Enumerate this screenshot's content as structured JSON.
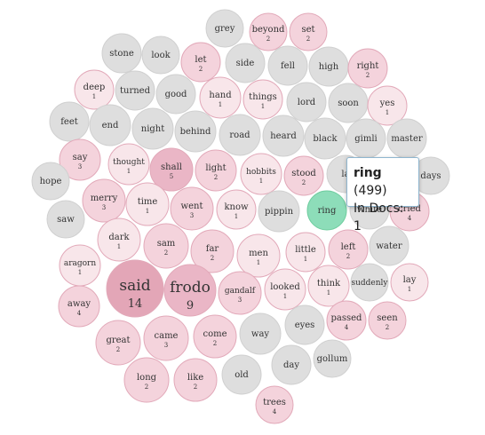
{
  "colors": {
    "zero": "#dedede",
    "zero_stroke": "#d0d0d0",
    "low": "#f8e6ea",
    "mid": "#f4d3dc",
    "high": "#eab6c6",
    "top": "#e3a6b7",
    "stroke": "#e2a9b9",
    "highlight": "#8dddb9",
    "highlight_stroke": "#6fcd9f"
  },
  "tooltip": {
    "word": "ring",
    "total": "(499)",
    "docs_label": "In Docs:",
    "docs": "1"
  },
  "chart_data": {
    "type": "bubble",
    "title": "",
    "items": [
      {
        "word": "grey",
        "count": null
      },
      {
        "word": "beyond",
        "count": 2
      },
      {
        "word": "set",
        "count": 2
      },
      {
        "word": "stone",
        "count": null
      },
      {
        "word": "look",
        "count": null
      },
      {
        "word": "let",
        "count": 2
      },
      {
        "word": "side",
        "count": null
      },
      {
        "word": "fell",
        "count": null
      },
      {
        "word": "high",
        "count": null
      },
      {
        "word": "right",
        "count": 2
      },
      {
        "word": "deep",
        "count": 1
      },
      {
        "word": "turned",
        "count": null
      },
      {
        "word": "good",
        "count": null
      },
      {
        "word": "hand",
        "count": 1
      },
      {
        "word": "things",
        "count": 1
      },
      {
        "word": "lord",
        "count": null
      },
      {
        "word": "soon",
        "count": null
      },
      {
        "word": "yes",
        "count": 1
      },
      {
        "word": "feet",
        "count": null
      },
      {
        "word": "end",
        "count": null
      },
      {
        "word": "night",
        "count": null
      },
      {
        "word": "behind",
        "count": null
      },
      {
        "word": "road",
        "count": null
      },
      {
        "word": "heard",
        "count": null
      },
      {
        "word": "black",
        "count": null
      },
      {
        "word": "gimli",
        "count": null
      },
      {
        "word": "master",
        "count": null
      },
      {
        "word": "say",
        "count": 3
      },
      {
        "word": "thought",
        "count": 1
      },
      {
        "word": "shall",
        "count": 5
      },
      {
        "word": "light",
        "count": 2
      },
      {
        "word": "hobbits",
        "count": 1
      },
      {
        "word": "stood",
        "count": 2
      },
      {
        "word": "la",
        "count": null
      },
      {
        "word": "days",
        "count": null
      },
      {
        "word": "hope",
        "count": null
      },
      {
        "word": "merry",
        "count": 3
      },
      {
        "word": "time",
        "count": 1
      },
      {
        "word": "went",
        "count": 3
      },
      {
        "word": "know",
        "count": 1
      },
      {
        "word": "pippin",
        "count": null
      },
      {
        "word": "ring",
        "count": null
      },
      {
        "word": "white",
        "count": null
      },
      {
        "word": "cried",
        "count": 4
      },
      {
        "word": "saw",
        "count": null
      },
      {
        "word": "dark",
        "count": 1
      },
      {
        "word": "sam",
        "count": 2
      },
      {
        "word": "far",
        "count": 2
      },
      {
        "word": "men",
        "count": 1
      },
      {
        "word": "little",
        "count": 1
      },
      {
        "word": "left",
        "count": 2
      },
      {
        "word": "water",
        "count": null
      },
      {
        "word": "aragorn",
        "count": 1
      },
      {
        "word": "said",
        "count": 14
      },
      {
        "word": "frodo",
        "count": 9
      },
      {
        "word": "gandalf",
        "count": 3
      },
      {
        "word": "looked",
        "count": 1
      },
      {
        "word": "think",
        "count": 1
      },
      {
        "word": "suddenly",
        "count": null
      },
      {
        "word": "lay",
        "count": 1
      },
      {
        "word": "away",
        "count": 4
      },
      {
        "word": "eyes",
        "count": null
      },
      {
        "word": "passed",
        "count": 4
      },
      {
        "word": "seen",
        "count": 2
      },
      {
        "word": "great",
        "count": 2
      },
      {
        "word": "came",
        "count": 3
      },
      {
        "word": "come",
        "count": 2
      },
      {
        "word": "way",
        "count": null
      },
      {
        "word": "gollum",
        "count": null
      },
      {
        "word": "day",
        "count": null
      },
      {
        "word": "long",
        "count": 2
      },
      {
        "word": "like",
        "count": 2
      },
      {
        "word": "old",
        "count": null
      },
      {
        "word": "trees",
        "count": 4
      }
    ]
  }
}
